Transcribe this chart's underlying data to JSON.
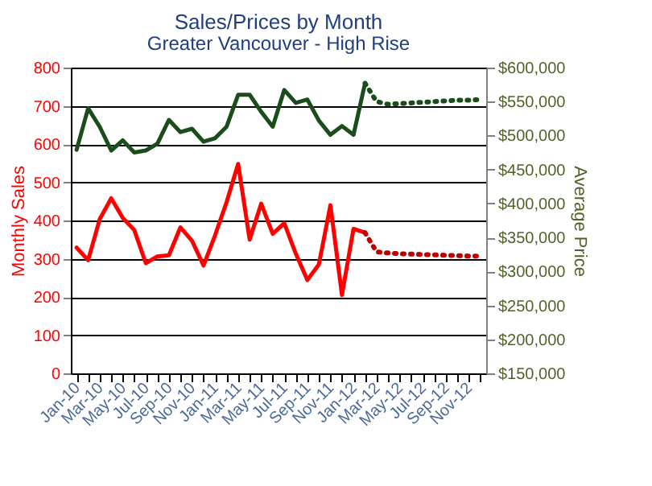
{
  "chart_data": {
    "type": "line",
    "title": "Sales/Prices by Month",
    "subtitle": "Greater Vancouver - High Rise",
    "ylabel": "Monthly Sales",
    "y2label": "Average Price",
    "categories": [
      "Jan-10",
      null,
      "Mar-10",
      null,
      "May-10",
      null,
      "Jul-10",
      null,
      "Sep-10",
      null,
      "Nov-10",
      null,
      "Jan-11",
      null,
      "Mar-11",
      null,
      "May-11",
      null,
      "Jul-11",
      null,
      "Sep-11",
      null,
      "Nov-11",
      null,
      "Jan-12",
      null,
      "Mar-12",
      null,
      "May-12",
      null,
      "Jul-12",
      null,
      "Sep-12",
      null,
      "Nov-12",
      null
    ],
    "series": [
      {
        "color": "#ff0000",
        "line_style": "solid",
        "values": [
          329,
          296,
          403,
          458,
          407,
          375,
          288,
          306,
          309,
          382,
          347,
          282,
          361,
          448,
          548,
          350,
          444,
          365,
          393,
          313,
          244,
          285,
          440,
          205,
          378,
          368,
          null,
          null,
          null,
          null,
          null,
          null,
          null,
          null,
          null,
          null
        ]
      },
      {
        "color": "#c00000",
        "line_style": "dotted",
        "values": [
          null,
          null,
          null,
          null,
          null,
          null,
          null,
          null,
          null,
          null,
          null,
          null,
          null,
          null,
          null,
          null,
          null,
          null,
          null,
          null,
          null,
          null,
          null,
          null,
          null,
          368,
          318,
          315,
          313,
          312,
          311,
          310,
          309,
          308,
          307,
          307
        ]
      },
      {
        "axis": "y2",
        "color": "#1a4d1a",
        "line_style": "solid",
        "values": [
          479000,
          540000,
          513000,
          478000,
          493000,
          475000,
          478000,
          488000,
          523000,
          505000,
          510000,
          491000,
          496000,
          513000,
          560000,
          560000,
          535000,
          513000,
          567000,
          548000,
          553000,
          522000,
          501000,
          514000,
          501000,
          577000,
          null,
          null,
          null,
          null,
          null,
          null,
          null,
          null,
          null,
          null
        ]
      },
      {
        "axis": "y2",
        "color": "#1a4d1a",
        "line_style": "dotted",
        "values": [
          null,
          null,
          null,
          null,
          null,
          null,
          null,
          null,
          null,
          null,
          null,
          null,
          null,
          null,
          null,
          null,
          null,
          null,
          null,
          null,
          null,
          null,
          null,
          null,
          null,
          577000,
          550000,
          546000,
          547000,
          548000,
          549000,
          550000,
          551000,
          552000,
          552000,
          553000
        ]
      }
    ],
    "ylim": [
      0,
      800
    ],
    "yticks": [
      0,
      100,
      200,
      300,
      400,
      500,
      600,
      700,
      800
    ],
    "y2lim": [
      150000,
      600000
    ],
    "y2ticks": [
      {
        "value": 150000,
        "label": "$150,000"
      },
      {
        "value": 200000,
        "label": "$200,000"
      },
      {
        "value": 250000,
        "label": "$250,000"
      },
      {
        "value": 300000,
        "label": "$300,000"
      },
      {
        "value": 350000,
        "label": "$350,000"
      },
      {
        "value": 400000,
        "label": "$400,000"
      },
      {
        "value": 450000,
        "label": "$450,000"
      },
      {
        "value": 500000,
        "label": "$500,000"
      },
      {
        "value": 550000,
        "label": "$550,000"
      },
      {
        "value": 600000,
        "label": "$600,000"
      }
    ],
    "grid": "y",
    "marker": "none"
  }
}
